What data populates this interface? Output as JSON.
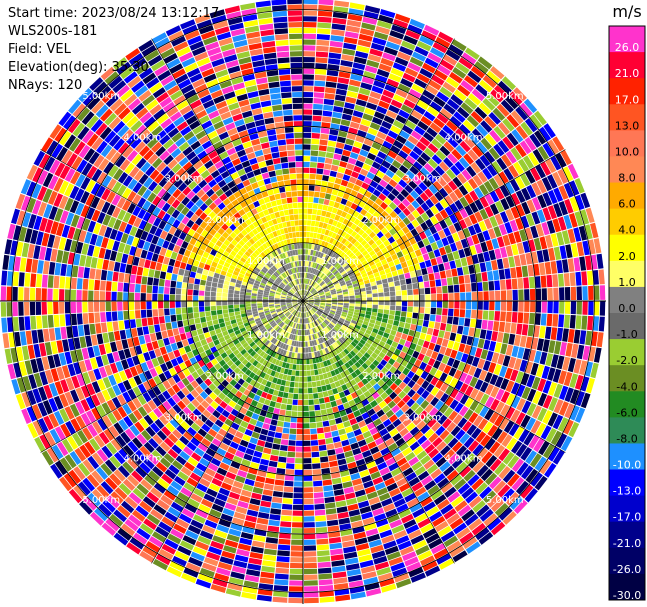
{
  "header": {
    "start_time": "Start time: 2023/08/24 13:12:17",
    "instrument": "WLS200s-181",
    "field": "Field: VEL",
    "elevation": "Elevation(deg): 35.30",
    "nrays": "NRays: 120"
  },
  "colorbar": {
    "unit": "m/s",
    "levels": [
      {
        "label": "26.0",
        "color": "#ff33cc"
      },
      {
        "label": "21.0",
        "color": "#ff0033"
      },
      {
        "label": "17.0",
        "color": "#ff2200"
      },
      {
        "label": "13.0",
        "color": "#ff5522"
      },
      {
        "label": "10.0",
        "color": "#ff7755"
      },
      {
        "label": "8.0",
        "color": "#ff8855"
      },
      {
        "label": "6.0",
        "color": "#ffaa00"
      },
      {
        "label": "4.0",
        "color": "#ffcc00"
      },
      {
        "label": "2.0",
        "color": "#ffff00"
      },
      {
        "label": "1.0",
        "color": "#ffff66"
      },
      {
        "label": "0.0",
        "color": "#808080"
      },
      {
        "label": "-1.0",
        "color": "#6a6a6a"
      },
      {
        "label": "-2.0",
        "color": "#9acd32"
      },
      {
        "label": "-4.0",
        "color": "#6b8e23"
      },
      {
        "label": "-6.0",
        "color": "#228b22"
      },
      {
        "label": "-8.0",
        "color": "#2e8b57"
      },
      {
        "label": "-10.0",
        "color": "#1e90ff"
      },
      {
        "label": "-13.0",
        "color": "#0000ff"
      },
      {
        "label": "-17.0",
        "color": "#0000cd"
      },
      {
        "label": "-21.0",
        "color": "#00008b"
      },
      {
        "label": "-26.0",
        "color": "#000066"
      },
      {
        "label": "-30.0",
        "color": "#000044"
      }
    ]
  },
  "range_labels": [
    "1.00km",
    "2.00km",
    "3.00km",
    "4.00km",
    "5.00km"
  ],
  "chart_data": {
    "type": "heatmap",
    "field": "VEL",
    "nrays": 120,
    "range_rings_km": [
      1,
      2,
      3,
      4,
      5
    ],
    "max_range_km": 5.2
  }
}
